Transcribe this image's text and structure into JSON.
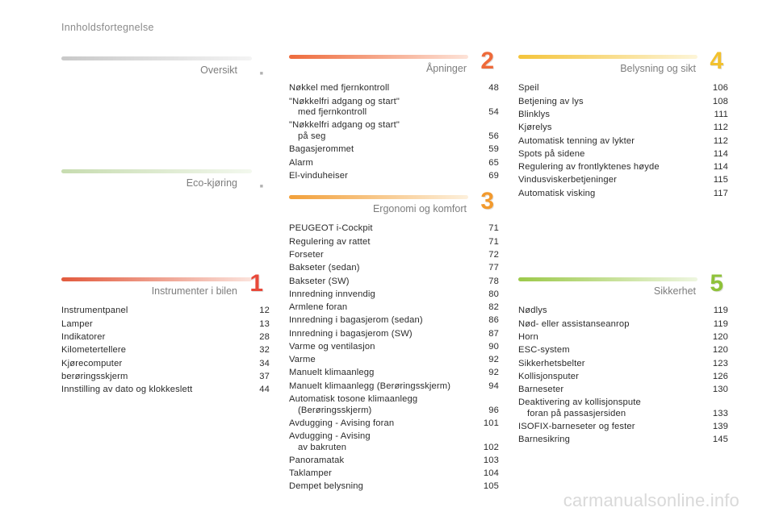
{
  "header": {
    "title": "Innholdsfortegnelse"
  },
  "sections": {
    "oversikt": {
      "title": "Oversikt",
      "bar_from": "#c9c9c9",
      "bar_to": "#f4f4f4"
    },
    "eco": {
      "title": "Eco-kjøring",
      "bar_from": "#c7dcb0",
      "bar_to": "#f3f8ee"
    },
    "instrumenter": {
      "title": "Instrumenter i bilen",
      "number": "1",
      "color": "#e8493a",
      "bar_from": "#e25a3d",
      "bar_to": "#fbe3dc",
      "rows": [
        {
          "label": "Instrumentpanel",
          "page": "12"
        },
        {
          "label": "Lamper",
          "page": "13"
        },
        {
          "label": "Indikatorer",
          "page": "28"
        },
        {
          "label": "Kilometertellere",
          "page": "32"
        },
        {
          "label": "Kjørecomputer",
          "page": "34"
        },
        {
          "label": "berøringsskjerm",
          "page": "37"
        },
        {
          "label": "Innstilling av dato og klokkeslett",
          "page": "44"
        }
      ]
    },
    "apninger": {
      "title": "Åpninger",
      "number": "2",
      "color": "#ee6a3a",
      "bar_from": "#ee6b3c",
      "bar_to": "#fde3d8",
      "rows": [
        {
          "label": "Nøkkel med fjernkontroll",
          "page": "48"
        },
        {
          "label": "\"Nøkkelfri adgang og start\"",
          "cont": "med fjernkontroll",
          "page": "54"
        },
        {
          "label": "\"Nøkkelfri adgang og start\"",
          "cont": "på seg",
          "page": "56"
        },
        {
          "label": "Bagasjerommet",
          "page": "59"
        },
        {
          "label": "Alarm",
          "page": "65"
        },
        {
          "label": "El-vinduheiser",
          "page": "69"
        }
      ]
    },
    "ergonomi": {
      "title": "Ergonomi og komfort",
      "number": "3",
      "color": "#f29a2e",
      "bar_from": "#f2a03a",
      "bar_to": "#fdf0dc",
      "rows": [
        {
          "label": "PEUGEOT i-Cockpit",
          "page": "71"
        },
        {
          "label": "Regulering av rattet",
          "page": "71"
        },
        {
          "label": "Forseter",
          "page": "72"
        },
        {
          "label": "Bakseter (sedan)",
          "page": "77"
        },
        {
          "label": "Bakseter (SW)",
          "page": "78"
        },
        {
          "label": "Innredning innvendig",
          "page": "80"
        },
        {
          "label": "Armlene foran",
          "page": "82"
        },
        {
          "label": "Innredning i bagasjerom (sedan)",
          "page": "86"
        },
        {
          "label": "Innredning i bagasjerom (SW)",
          "page": "87"
        },
        {
          "label": "Varme og ventilasjon",
          "page": "90"
        },
        {
          "label": "Varme",
          "page": "92"
        },
        {
          "label": "Manuelt klimaanlegg",
          "page": "92"
        },
        {
          "label": "Manuelt klimaanlegg (Berøringsskjerm)",
          "page": "94"
        },
        {
          "label": "Automatisk tosone klimaanlegg",
          "cont": "(Berøringsskjerm)",
          "page": "96"
        },
        {
          "label": "Avdugging - Avising foran",
          "page": "101"
        },
        {
          "label": "Avdugging - Avising",
          "cont": "av bakruten",
          "page": "102"
        },
        {
          "label": "Panoramatak",
          "page": "103"
        },
        {
          "label": "Taklamper",
          "page": "104"
        },
        {
          "label": "Dempet belysning",
          "page": "105"
        }
      ]
    },
    "belysning": {
      "title": "Belysning og sikt",
      "number": "4",
      "color": "#f2c12e",
      "bar_from": "#f4c43a",
      "bar_to": "#fdf5d8",
      "rows": [
        {
          "label": "Speil",
          "page": "106"
        },
        {
          "label": "Betjening av lys",
          "page": "108"
        },
        {
          "label": "Blinklys",
          "page": "111"
        },
        {
          "label": "Kjørelys",
          "page": "112"
        },
        {
          "label": "Automatisk tenning av lykter",
          "page": "112"
        },
        {
          "label": "Spots på sidene",
          "page": "114"
        },
        {
          "label": "Regulering av frontlyktenes høyde",
          "page": "114"
        },
        {
          "label": "Vindusviskerbetjeninger",
          "page": "115"
        },
        {
          "label": "Automatisk visking",
          "page": "117"
        }
      ]
    },
    "sikkerhet": {
      "title": "Sikkerhet",
      "number": "5",
      "color": "#8fc23a",
      "bar_from": "#9cc94a",
      "bar_to": "#eef6e0",
      "rows": [
        {
          "label": "Nødlys",
          "page": "119"
        },
        {
          "label": "Nød- eller assistanseanrop",
          "page": "119"
        },
        {
          "label": "Horn",
          "page": "120"
        },
        {
          "label": "ESC-system",
          "page": "120"
        },
        {
          "label": "Sikkerhetsbelter",
          "page": "123"
        },
        {
          "label": "Kollisjonsputer",
          "page": "126"
        },
        {
          "label": "Barneseter",
          "page": "130"
        },
        {
          "label": "Deaktivering av kollisjonspute",
          "cont": "foran på passasjersiden",
          "page": "133"
        },
        {
          "label": "ISOFIX-barneseter og fester",
          "page": "139"
        },
        {
          "label": "Barnesikring",
          "page": "145"
        }
      ]
    }
  },
  "watermark": "carmanualsonline.info"
}
